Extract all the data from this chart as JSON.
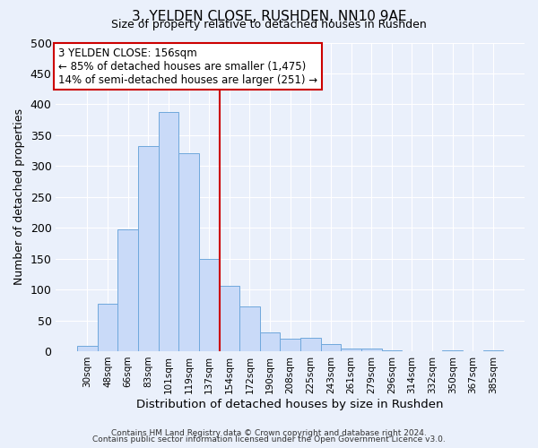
{
  "title": "3, YELDEN CLOSE, RUSHDEN, NN10 9AE",
  "subtitle": "Size of property relative to detached houses in Rushden",
  "xlabel": "Distribution of detached houses by size in Rushden",
  "ylabel": "Number of detached properties",
  "bin_labels": [
    "30sqm",
    "48sqm",
    "66sqm",
    "83sqm",
    "101sqm",
    "119sqm",
    "137sqm",
    "154sqm",
    "172sqm",
    "190sqm",
    "208sqm",
    "225sqm",
    "243sqm",
    "261sqm",
    "279sqm",
    "296sqm",
    "314sqm",
    "332sqm",
    "350sqm",
    "367sqm",
    "385sqm"
  ],
  "bar_heights": [
    8,
    77,
    197,
    332,
    388,
    321,
    150,
    106,
    72,
    30,
    20,
    22,
    12,
    5,
    4,
    2,
    0,
    0,
    2,
    0,
    2
  ],
  "bar_color": "#c9daf8",
  "bar_edge_color": "#6fa8dc",
  "vline_index": 7,
  "annotation_title": "3 YELDEN CLOSE: 156sqm",
  "annotation_line1": "← 85% of detached houses are smaller (1,475)",
  "annotation_line2": "14% of semi-detached houses are larger (251) →",
  "annotation_box_color": "#ffffff",
  "annotation_box_edge_color": "#cc0000",
  "vline_color": "#cc0000",
  "ylim": [
    0,
    500
  ],
  "yticks": [
    0,
    50,
    100,
    150,
    200,
    250,
    300,
    350,
    400,
    450,
    500
  ],
  "bg_color": "#eaf0fb",
  "footer1": "Contains HM Land Registry data © Crown copyright and database right 2024.",
  "footer2": "Contains public sector information licensed under the Open Government Licence v3.0."
}
